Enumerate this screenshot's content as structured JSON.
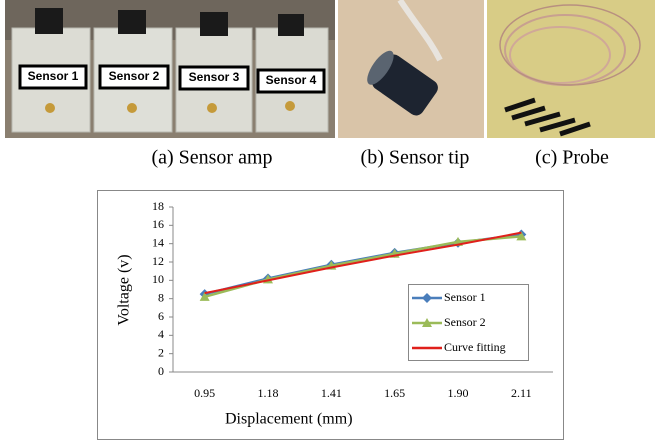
{
  "photos": {
    "sensor_labels": [
      "Sensor 1",
      "Sensor 2",
      "Sensor 3",
      "Sensor 4"
    ]
  },
  "captions": [
    "(a)  Sensor  amp",
    "(b)  Sensor  tip",
    "(c)  Probe"
  ],
  "chart_data": {
    "type": "line",
    "x_label": "Displacement (mm)",
    "y_label": "Voltage (v)",
    "categories": [
      "0.95",
      "1.18",
      "1.41",
      "1.65",
      "1.90",
      "2.11"
    ],
    "series": [
      {
        "name": "Sensor 1",
        "color": "#4a7ebb",
        "marker": "diamond",
        "values": [
          8.5,
          10.2,
          11.7,
          13.0,
          14.1,
          15.0
        ]
      },
      {
        "name": "Sensor 2",
        "color": "#9bbb59",
        "marker": "triangle",
        "values": [
          8.2,
          10.1,
          11.6,
          12.9,
          14.2,
          14.8
        ]
      },
      {
        "name": "Curve fitting",
        "color": "#e0201b",
        "marker": "none",
        "values": [
          8.6,
          10.0,
          11.4,
          12.7,
          13.9,
          15.2
        ]
      }
    ],
    "ylim": [
      0,
      18
    ],
    "yticks": [
      0,
      2,
      4,
      6,
      8,
      10,
      12,
      14,
      16,
      18
    ],
    "grid": false
  }
}
